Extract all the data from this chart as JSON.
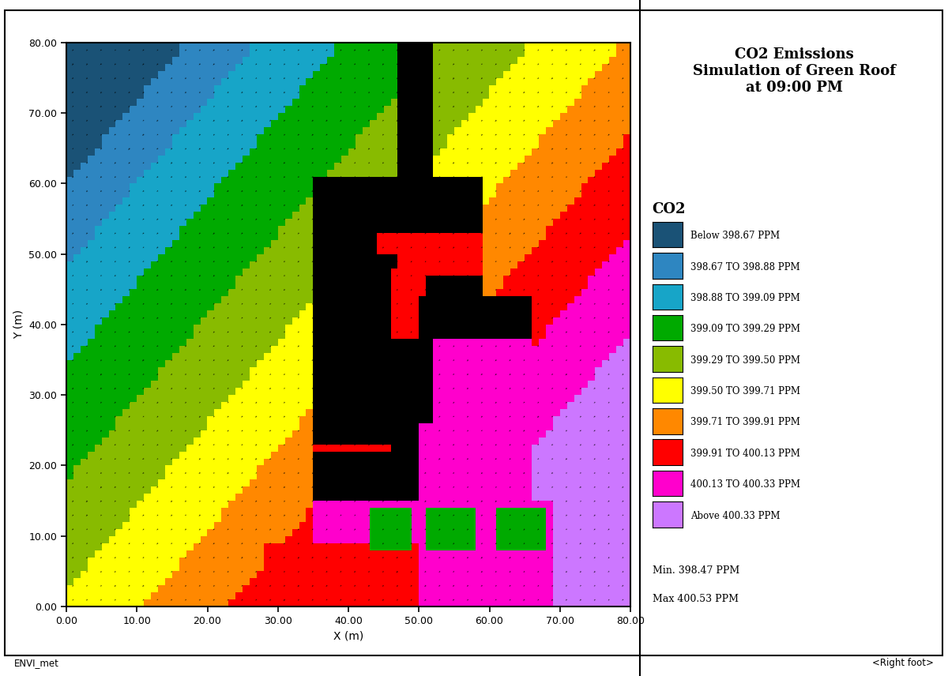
{
  "title": "CO2 Emissions\nSimulation of Green Roof\nat 09:00 PM",
  "xlabel": "X (m)",
  "ylabel": "Y (m)",
  "xlim": [
    0.0,
    80.0
  ],
  "ylim": [
    0.0,
    80.0
  ],
  "xticks": [
    0.0,
    10.0,
    20.0,
    30.0,
    40.0,
    50.0,
    60.0,
    70.0,
    80.0
  ],
  "yticks": [
    0.0,
    10.0,
    20.0,
    30.0,
    40.0,
    50.0,
    60.0,
    70.0,
    80.0
  ],
  "legend_title": "CO2",
  "legend_labels": [
    "Below 398.67 PPM",
    "398.67 TO 398.88 PPM",
    "398.88 TO 399.09 PPM",
    "399.09 TO 399.29 PPM",
    "399.29 TO 399.50 PPM",
    "399.50 TO 399.71 PPM",
    "399.71 TO 399.91 PPM",
    "399.91 TO 400.13 PPM",
    "400.13 TO 400.33 PPM",
    "Above 400.33 PPM"
  ],
  "legend_colors": [
    "#1a5276",
    "#2e86c1",
    "#17a5c8",
    "#00aa00",
    "#88bb00",
    "#ffff00",
    "#ff8800",
    "#ff0000",
    "#ff00cc",
    "#cc77ff"
  ],
  "min_label": "Min. 398.47 PPM",
  "max_label": "Max 400.53 PPM",
  "footer_left": "ENVI_met",
  "footer_right": "<Right foot>"
}
